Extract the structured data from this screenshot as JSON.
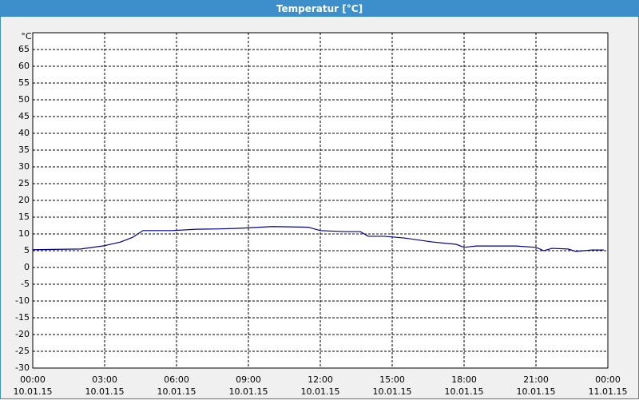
{
  "chart_data": {
    "type": "line",
    "title": "Temperatur [°C]",
    "y_label": "°C",
    "x": [
      0,
      2,
      3,
      3.67,
      4.17,
      4.6,
      5.83,
      6.83,
      7.83,
      8.67,
      10,
      11.5,
      12,
      13,
      13.67,
      14,
      14.67,
      15.5,
      16.67,
      17.67,
      18,
      18.5,
      20.17,
      21,
      21.33,
      21.67,
      22.33,
      22.67,
      23.33,
      23.83
    ],
    "series": [
      {
        "name": "Temperatur",
        "color": "#00008b",
        "values": [
          5.3,
          5.5,
          6.5,
          7.6,
          9,
          11,
          11,
          11.4,
          11.5,
          11.7,
          12.2,
          12,
          11,
          10.7,
          10.7,
          9.3,
          9.3,
          8.8,
          7.6,
          6.9,
          6,
          6.4,
          6.4,
          6,
          5,
          5.7,
          5.5,
          4.8,
          5.2,
          5.2
        ]
      }
    ],
    "xlim": [
      0,
      24
    ],
    "xticks": [
      {
        "value": 0,
        "label": "00:00"
      },
      {
        "value": 3,
        "label": "03:00"
      },
      {
        "value": 6,
        "label": "06:00"
      },
      {
        "value": 9,
        "label": "09:00"
      },
      {
        "value": 12,
        "label": "12:00"
      },
      {
        "value": 15,
        "label": "15:00"
      },
      {
        "value": 18,
        "label": "18:00"
      },
      {
        "value": 21,
        "label": "21:00"
      },
      {
        "value": 24,
        "label": "00:00"
      }
    ],
    "xtick_dates": [
      "10.01.15",
      "10.01.15",
      "10.01.15",
      "10.01.15",
      "10.01.15",
      "10.01.15",
      "10.01.15",
      "10.01.15",
      "11.01.15"
    ],
    "ylim": [
      -30,
      70
    ],
    "yticks": [
      -30,
      -25,
      -20,
      -15,
      -10,
      -5,
      0,
      5,
      10,
      15,
      20,
      25,
      30,
      35,
      40,
      45,
      50,
      55,
      60,
      65
    ],
    "grid": true
  }
}
